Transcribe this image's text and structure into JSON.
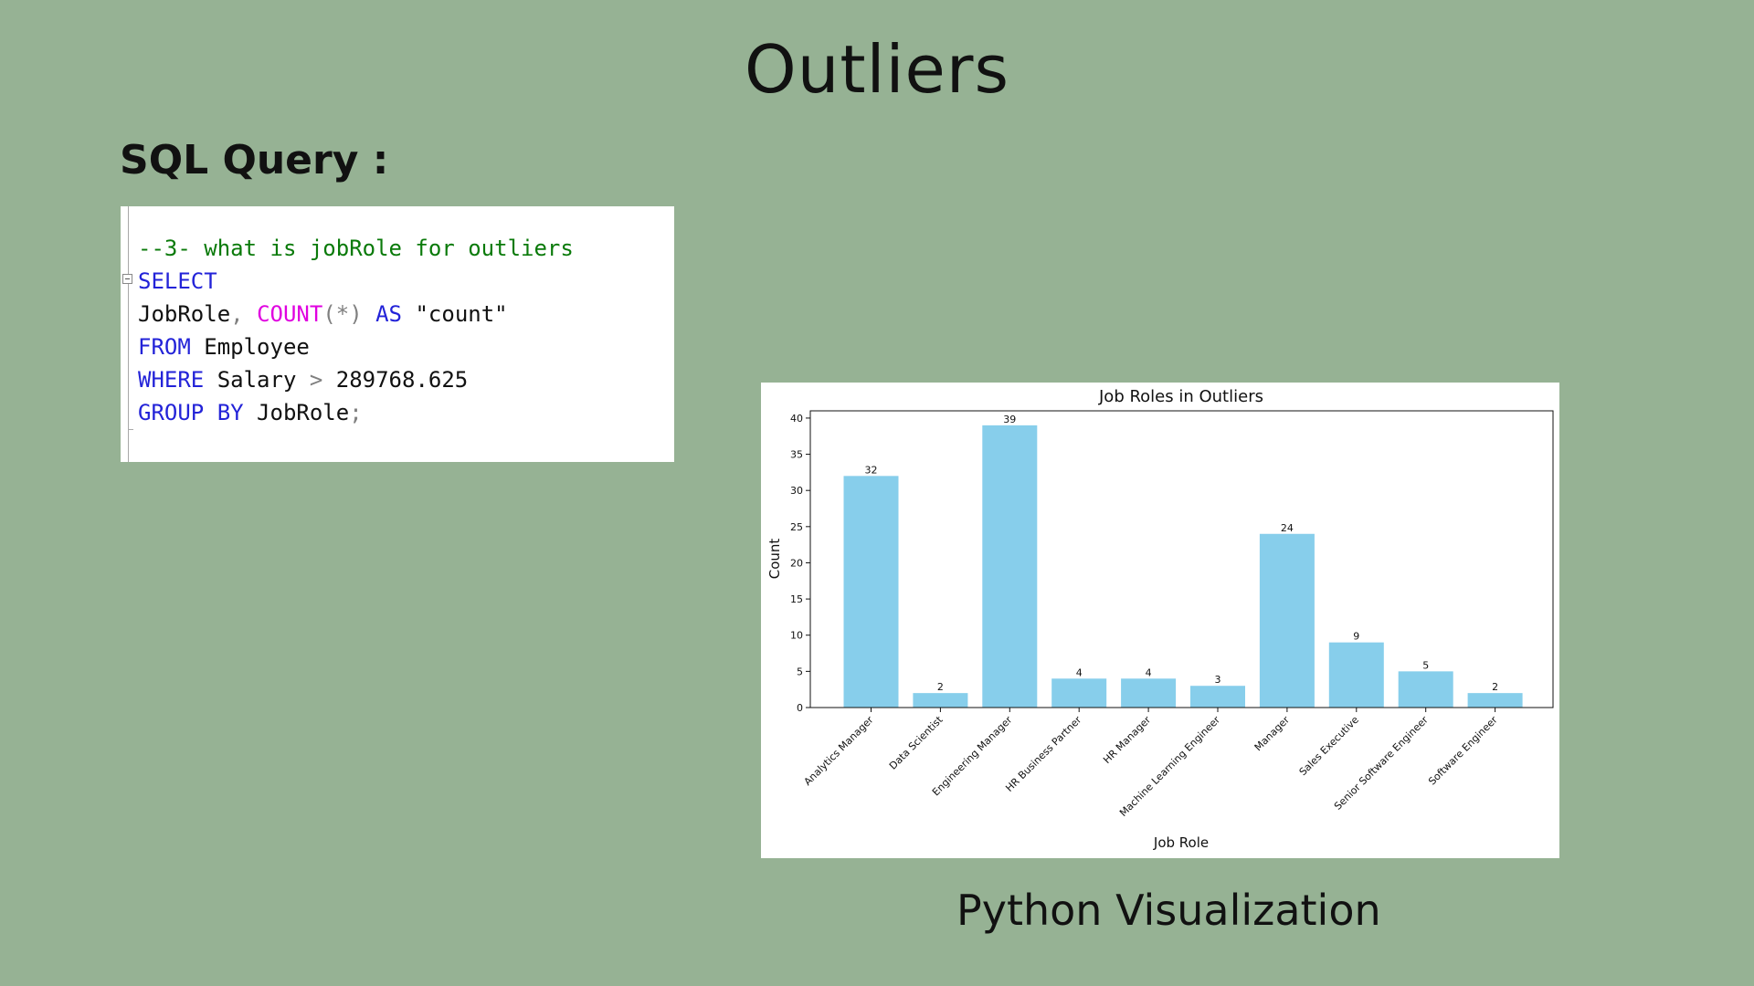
{
  "slide": {
    "title": "Outliers",
    "sql_heading": "SQL Query :",
    "caption": "Python Visualization"
  },
  "sql": {
    "lines": [
      [
        {
          "t": "--3- what is jobRole for outliers",
          "c": "comment"
        }
      ],
      [
        {
          "t": "SELECT",
          "c": "kw"
        }
      ],
      [
        {
          "t": "JobRole",
          "c": "id"
        },
        {
          "t": ", ",
          "c": "op"
        },
        {
          "t": "COUNT",
          "c": "fn"
        },
        {
          "t": "(*) ",
          "c": "op"
        },
        {
          "t": "AS",
          "c": "kw"
        },
        {
          "t": " \"count\"",
          "c": "id"
        }
      ],
      [
        {
          "t": "FROM",
          "c": "kw"
        },
        {
          "t": " Employee",
          "c": "id"
        }
      ],
      [
        {
          "t": "WHERE",
          "c": "kw"
        },
        {
          "t": " Salary ",
          "c": "id"
        },
        {
          "t": ">",
          "c": "op"
        },
        {
          "t": " 289768.625",
          "c": "id"
        }
      ],
      [
        {
          "t": "GROUP BY",
          "c": "kw"
        },
        {
          "t": " JobRole",
          "c": "id"
        },
        {
          "t": ";",
          "c": "op"
        }
      ]
    ]
  },
  "chart_data": {
    "type": "bar",
    "title": "Job Roles in Outliers",
    "xlabel": "Job Role",
    "ylabel": "Count",
    "categories": [
      "Analytics Manager",
      "Data Scientist",
      "Engineering Manager",
      "HR Business Partner",
      "HR Manager",
      "Machine Learning Engineer",
      "Manager",
      "Sales Executive",
      "Senior Software Engineer",
      "Software Engineer"
    ],
    "values": [
      32,
      2,
      39,
      4,
      4,
      3,
      24,
      9,
      5,
      2
    ],
    "ylim": [
      0,
      41
    ],
    "yticks": [
      0,
      5,
      10,
      15,
      20,
      25,
      30,
      35,
      40
    ],
    "bar_color": "#87ceeb",
    "grid": false,
    "data_labels": true
  }
}
